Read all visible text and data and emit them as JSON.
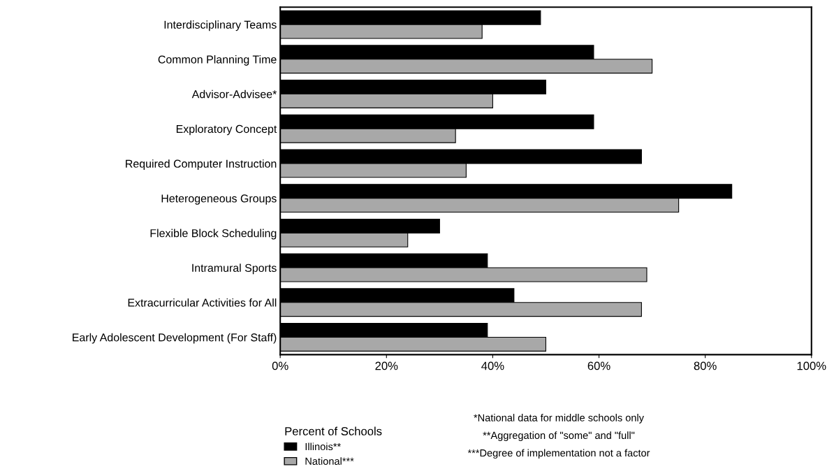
{
  "chart_data": {
    "type": "bar",
    "orientation": "horizontal",
    "categories": [
      "Interdisciplinary Teams",
      "Common Planning Time",
      "Advisor-Advisee*",
      "Exploratory Concept",
      "Required Computer Instruction",
      "Heterogeneous Groups",
      "Flexible Block Scheduling",
      "Intramural Sports",
      "Extracurricular Activities for All",
      "Early Adolescent Development (For Staff)"
    ],
    "series": [
      {
        "name": "Illinois**",
        "color": "#000000",
        "values": [
          49,
          59,
          50,
          59,
          68,
          85,
          30,
          39,
          44,
          39
        ]
      },
      {
        "name": "National***",
        "color": "#a8a8a8",
        "values": [
          38,
          70,
          40,
          33,
          35,
          75,
          24,
          69,
          68,
          50
        ]
      }
    ],
    "xlim": [
      0,
      100
    ],
    "xticks": [
      {
        "value": 0,
        "label": "0%"
      },
      {
        "value": 20,
        "label": "20%"
      },
      {
        "value": 40,
        "label": "40%"
      },
      {
        "value": 60,
        "label": "60%"
      },
      {
        "value": 80,
        "label": "80%"
      },
      {
        "value": 100,
        "label": "100%"
      }
    ],
    "legend": "bottom left",
    "legend_title": "Percent of Schools",
    "grid": false,
    "annotations": [
      "*National data for middle schools only",
      "**Aggregation of \"some\" and \"full\"",
      "***Degree of implementation not a factor"
    ]
  }
}
